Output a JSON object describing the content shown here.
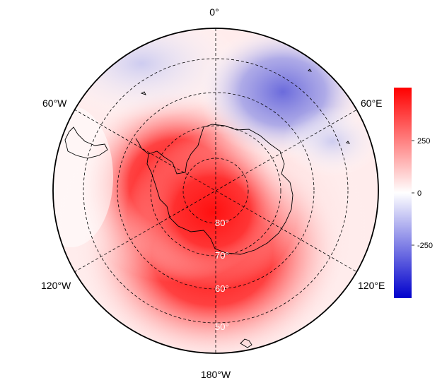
{
  "map": {
    "projection": "south-polar-stereographic",
    "longitude_labels": {
      "top": "0°",
      "upper_right": "60°E",
      "lower_right": "120°E",
      "bottom": "180°W",
      "lower_left": "120°W",
      "upper_left": "60°W"
    },
    "latitude_labels": [
      "80°",
      "70°",
      "60°",
      "50°"
    ],
    "field": {
      "description": "diverging anomaly field",
      "positive_region": "Pacific sector / West Antarctica",
      "negative_region": "Indian Ocean sector near 30°E–60°E"
    }
  },
  "colorbar": {
    "ticks": [
      "250",
      "0",
      "-250"
    ],
    "colors": {
      "high": "#ff0000",
      "mid": "#ffffff",
      "low": "#0000cc"
    }
  }
}
